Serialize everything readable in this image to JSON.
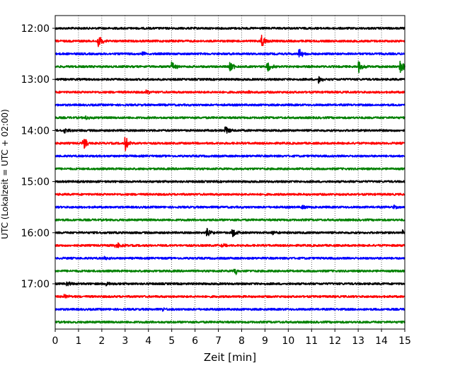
{
  "chart_data": {
    "type": "line",
    "title": "",
    "xlabel": "Zeit  [min]",
    "ylabel": "UTC (Lokalzeit = UTC + 02:00)",
    "xlim": [
      0,
      15
    ],
    "x_ticks": [
      "0",
      "1",
      "2",
      "3",
      "4",
      "5",
      "6",
      "7",
      "8",
      "9",
      "10",
      "11",
      "12",
      "13",
      "14",
      "15"
    ],
    "vertical_grid": "dotted",
    "hour_labels": [
      "12:00",
      "13:00",
      "14:00",
      "15:00",
      "16:00",
      "17:00"
    ],
    "trace_colors": [
      "#000000",
      "#ff0000",
      "#0000ff",
      "#008000"
    ],
    "traces": [
      {
        "start": "12:00",
        "color": "#000000",
        "events": []
      },
      {
        "start": "12:15",
        "color": "#ff0000",
        "events": [
          {
            "t": 1.85,
            "amp": 9
          },
          {
            "t": 8.85,
            "amp": 10
          }
        ]
      },
      {
        "start": "12:30",
        "color": "#0000ff",
        "events": [
          {
            "t": 3.75,
            "amp": 4
          },
          {
            "t": 10.45,
            "amp": 8
          }
        ]
      },
      {
        "start": "12:45",
        "color": "#008000",
        "events": [
          {
            "t": 5.0,
            "amp": 9
          },
          {
            "t": 7.5,
            "amp": 8
          },
          {
            "t": 9.1,
            "amp": 9
          },
          {
            "t": 13.0,
            "amp": 10
          },
          {
            "t": 14.8,
            "amp": 10
          }
        ]
      },
      {
        "start": "13:00",
        "color": "#000000",
        "events": [
          {
            "t": 11.3,
            "amp": 6
          }
        ]
      },
      {
        "start": "13:15",
        "color": "#ff0000",
        "events": [
          {
            "t": 3.9,
            "amp": 3
          },
          {
            "t": 8.3,
            "amp": 3
          }
        ]
      },
      {
        "start": "13:30",
        "color": "#0000ff",
        "events": []
      },
      {
        "start": "13:45",
        "color": "#008000",
        "events": [
          {
            "t": 1.3,
            "amp": 3
          }
        ]
      },
      {
        "start": "14:00",
        "color": "#000000",
        "events": [
          {
            "t": 0.4,
            "amp": 5
          },
          {
            "t": 7.3,
            "amp": 8
          }
        ]
      },
      {
        "start": "14:15",
        "color": "#ff0000",
        "events": [
          {
            "t": 1.2,
            "amp": 10
          },
          {
            "t": 3.0,
            "amp": 12
          }
        ]
      },
      {
        "start": "14:30",
        "color": "#0000ff",
        "events": []
      },
      {
        "start": "14:45",
        "color": "#008000",
        "events": []
      },
      {
        "start": "15:00",
        "color": "#000000",
        "events": []
      },
      {
        "start": "15:15",
        "color": "#ff0000",
        "events": []
      },
      {
        "start": "15:30",
        "color": "#0000ff",
        "events": [
          {
            "t": 10.6,
            "amp": 3
          },
          {
            "t": 14.5,
            "amp": 3
          }
        ]
      },
      {
        "start": "15:45",
        "color": "#008000",
        "events": []
      },
      {
        "start": "16:00",
        "color": "#000000",
        "events": [
          {
            "t": 6.5,
            "amp": 8
          },
          {
            "t": 7.6,
            "amp": 7
          },
          {
            "t": 9.3,
            "amp": 4
          },
          {
            "t": 14.9,
            "amp": 3
          }
        ]
      },
      {
        "start": "16:15",
        "color": "#ff0000",
        "events": [
          {
            "t": 2.6,
            "amp": 6
          },
          {
            "t": 7.1,
            "amp": 3
          }
        ]
      },
      {
        "start": "16:30",
        "color": "#0000ff",
        "events": [
          {
            "t": 2.1,
            "amp": 3
          }
        ]
      },
      {
        "start": "16:45",
        "color": "#008000",
        "events": [
          {
            "t": 7.7,
            "amp": 7
          }
        ]
      },
      {
        "start": "17:00",
        "color": "#000000",
        "events": [
          {
            "t": 0.5,
            "amp": 4
          },
          {
            "t": 2.2,
            "amp": 5
          }
        ]
      },
      {
        "start": "17:15",
        "color": "#ff0000",
        "events": [
          {
            "t": 0.4,
            "amp": 3
          }
        ]
      },
      {
        "start": "17:30",
        "color": "#0000ff",
        "events": [
          {
            "t": 4.6,
            "amp": 3
          }
        ]
      },
      {
        "start": "17:45",
        "color": "#008000",
        "events": []
      }
    ]
  }
}
